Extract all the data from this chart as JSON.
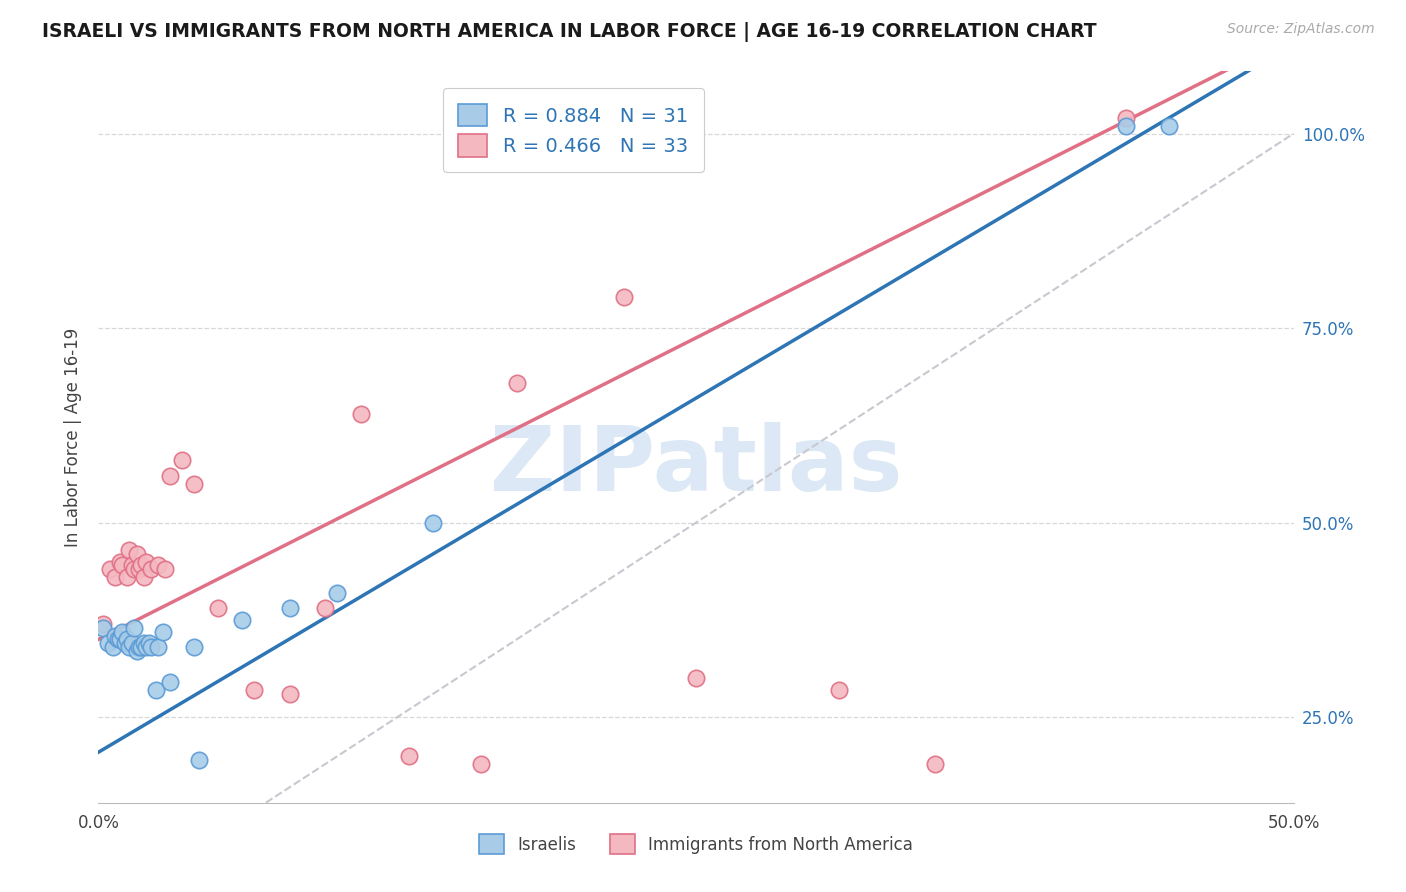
{
  "title": "ISRAELI VS IMMIGRANTS FROM NORTH AMERICA IN LABOR FORCE | AGE 16-19 CORRELATION CHART",
  "source": "Source: ZipAtlas.com",
  "ylabel": "In Labor Force | Age 16-19",
  "xlim": [
    0.0,
    0.5
  ],
  "ylim": [
    0.14,
    1.08
  ],
  "xtick_positions": [
    0.0,
    0.1,
    0.2,
    0.3,
    0.4,
    0.5
  ],
  "xticklabels": [
    "0.0%",
    "",
    "",
    "",
    "",
    "50.0%"
  ],
  "yticks_right": [
    0.25,
    0.5,
    0.75,
    1.0
  ],
  "ytick_labels_right": [
    "25.0%",
    "50.0%",
    "75.0%",
    "100.0%"
  ],
  "legend_label1": "Israelis",
  "legend_label2": "Immigrants from North America",
  "blue_color": "#a8cce8",
  "blue_edge_color": "#5b9bd5",
  "blue_line_color": "#2e75b6",
  "pink_color": "#f4b8c1",
  "pink_edge_color": "#e07085",
  "pink_line_color": "#e07085",
  "dashed_line_color": "#c8c8d0",
  "grid_color": "#d8d8d8",
  "watermark_color": "#dce8f5",
  "blue_R": "0.884",
  "blue_N": "31",
  "pink_R": "0.466",
  "pink_N": "33",
  "blue_points_x": [
    0.002,
    0.004,
    0.006,
    0.007,
    0.008,
    0.009,
    0.01,
    0.011,
    0.012,
    0.013,
    0.014,
    0.015,
    0.016,
    0.017,
    0.018,
    0.019,
    0.02,
    0.021,
    0.022,
    0.024,
    0.025,
    0.027,
    0.03,
    0.04,
    0.042,
    0.06,
    0.08,
    0.1,
    0.14,
    0.43,
    0.448
  ],
  "blue_points_y": [
    0.365,
    0.345,
    0.34,
    0.355,
    0.35,
    0.35,
    0.36,
    0.345,
    0.35,
    0.34,
    0.345,
    0.365,
    0.335,
    0.34,
    0.34,
    0.345,
    0.34,
    0.345,
    0.34,
    0.285,
    0.34,
    0.36,
    0.295,
    0.34,
    0.195,
    0.375,
    0.39,
    0.41,
    0.5,
    1.01,
    1.01
  ],
  "pink_points_x": [
    0.002,
    0.005,
    0.007,
    0.009,
    0.01,
    0.012,
    0.013,
    0.014,
    0.015,
    0.016,
    0.017,
    0.018,
    0.019,
    0.02,
    0.022,
    0.025,
    0.028,
    0.03,
    0.035,
    0.04,
    0.05,
    0.065,
    0.08,
    0.095,
    0.11,
    0.13,
    0.16,
    0.175,
    0.22,
    0.25,
    0.31,
    0.35,
    0.43
  ],
  "pink_points_y": [
    0.37,
    0.44,
    0.43,
    0.45,
    0.445,
    0.43,
    0.465,
    0.445,
    0.44,
    0.46,
    0.44,
    0.445,
    0.43,
    0.45,
    0.44,
    0.445,
    0.44,
    0.56,
    0.58,
    0.55,
    0.39,
    0.285,
    0.28,
    0.39,
    0.64,
    0.2,
    0.19,
    0.68,
    0.79,
    0.3,
    0.285,
    0.19,
    1.02
  ],
  "blue_intercept": 0.205,
  "blue_slope": 1.82,
  "pink_intercept": 0.35,
  "pink_slope": 1.55
}
